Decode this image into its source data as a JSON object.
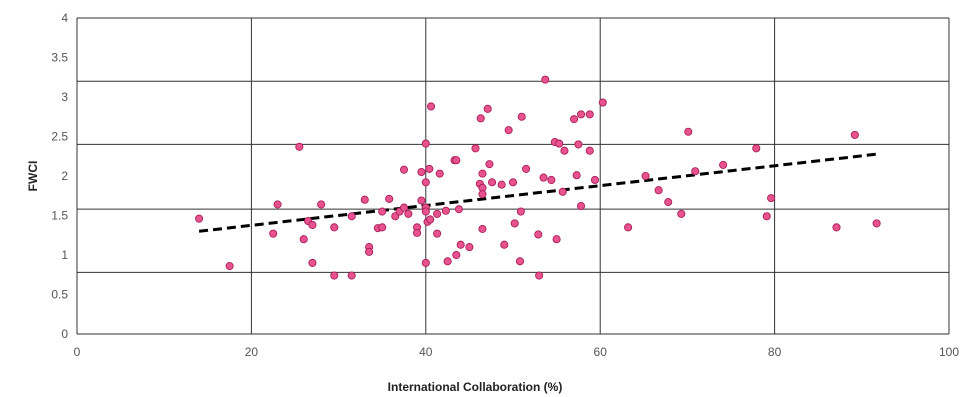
{
  "chart_data": {
    "type": "scatter",
    "title": "",
    "xlabel": "International Collaboration (%)",
    "ylabel": "FWCI",
    "xlim": [
      0,
      100
    ],
    "ylim": [
      0,
      4
    ],
    "x_ticks": [
      "0",
      "20",
      "40",
      "60",
      "80",
      "100"
    ],
    "y_ticks": [
      "0",
      "0.5",
      "1",
      "1.5",
      "2",
      "2.5",
      "3",
      "3.5",
      "4"
    ],
    "grid_x": [
      20,
      40,
      60,
      80
    ],
    "grid_y": [
      0.78,
      1.58,
      2.4,
      3.2
    ],
    "grid": true,
    "legend": "none",
    "point_color": "#e8538f",
    "trendline": {
      "style": "dashed",
      "color": "#000000",
      "from": [
        14,
        1.3
      ],
      "to": [
        92,
        2.28
      ]
    },
    "points": [
      {
        "x": 14,
        "y": 1.46
      },
      {
        "x": 17.5,
        "y": 0.86
      },
      {
        "x": 22.5,
        "y": 1.27
      },
      {
        "x": 23,
        "y": 1.64
      },
      {
        "x": 25.5,
        "y": 2.37
      },
      {
        "x": 26,
        "y": 1.2
      },
      {
        "x": 26.5,
        "y": 1.43
      },
      {
        "x": 27,
        "y": 1.38
      },
      {
        "x": 27,
        "y": 0.9
      },
      {
        "x": 28,
        "y": 1.64
      },
      {
        "x": 29.5,
        "y": 0.74
      },
      {
        "x": 29.5,
        "y": 1.35
      },
      {
        "x": 31.5,
        "y": 1.49
      },
      {
        "x": 31.5,
        "y": 0.74
      },
      {
        "x": 33,
        "y": 1.7
      },
      {
        "x": 33.5,
        "y": 1.1
      },
      {
        "x": 33.5,
        "y": 1.04
      },
      {
        "x": 34.5,
        "y": 1.34
      },
      {
        "x": 35,
        "y": 1.35
      },
      {
        "x": 35,
        "y": 1.55
      },
      {
        "x": 35.8,
        "y": 1.71
      },
      {
        "x": 36.5,
        "y": 1.49
      },
      {
        "x": 37,
        "y": 1.55
      },
      {
        "x": 37.5,
        "y": 1.6
      },
      {
        "x": 37.5,
        "y": 2.08
      },
      {
        "x": 38,
        "y": 1.52
      },
      {
        "x": 39,
        "y": 1.35
      },
      {
        "x": 39,
        "y": 1.28
      },
      {
        "x": 39.5,
        "y": 1.69
      },
      {
        "x": 39.5,
        "y": 2.05
      },
      {
        "x": 40,
        "y": 1.6
      },
      {
        "x": 40,
        "y": 1.55
      },
      {
        "x": 40,
        "y": 2.41
      },
      {
        "x": 40,
        "y": 1.92
      },
      {
        "x": 40,
        "y": 0.9
      },
      {
        "x": 40.2,
        "y": 1.42
      },
      {
        "x": 40.4,
        "y": 2.09
      },
      {
        "x": 40.5,
        "y": 1.45
      },
      {
        "x": 40.6,
        "y": 2.88
      },
      {
        "x": 41.3,
        "y": 1.52
      },
      {
        "x": 41.3,
        "y": 1.27
      },
      {
        "x": 41.6,
        "y": 2.03
      },
      {
        "x": 42.3,
        "y": 1.56
      },
      {
        "x": 42.5,
        "y": 0.92
      },
      {
        "x": 43.3,
        "y": 2.2
      },
      {
        "x": 43.5,
        "y": 2.2
      },
      {
        "x": 43.5,
        "y": 1.0
      },
      {
        "x": 43.8,
        "y": 1.58
      },
      {
        "x": 44,
        "y": 1.13
      },
      {
        "x": 45,
        "y": 1.1
      },
      {
        "x": 45.7,
        "y": 2.35
      },
      {
        "x": 46.2,
        "y": 1.9
      },
      {
        "x": 46.3,
        "y": 2.73
      },
      {
        "x": 46.5,
        "y": 1.85
      },
      {
        "x": 46.5,
        "y": 1.77
      },
      {
        "x": 46.5,
        "y": 1.33
      },
      {
        "x": 46.5,
        "y": 2.03
      },
      {
        "x": 47.1,
        "y": 2.85
      },
      {
        "x": 47.3,
        "y": 2.15
      },
      {
        "x": 47.6,
        "y": 1.92
      },
      {
        "x": 48.7,
        "y": 1.89
      },
      {
        "x": 49,
        "y": 1.13
      },
      {
        "x": 49.5,
        "y": 2.58
      },
      {
        "x": 50,
        "y": 1.92
      },
      {
        "x": 50.2,
        "y": 1.4
      },
      {
        "x": 50.8,
        "y": 0.92
      },
      {
        "x": 50.9,
        "y": 1.55
      },
      {
        "x": 51,
        "y": 2.75
      },
      {
        "x": 51.5,
        "y": 2.09
      },
      {
        "x": 52.9,
        "y": 1.26
      },
      {
        "x": 53,
        "y": 0.74
      },
      {
        "x": 53.5,
        "y": 1.98
      },
      {
        "x": 53.7,
        "y": 3.22
      },
      {
        "x": 54.4,
        "y": 1.95
      },
      {
        "x": 54.8,
        "y": 2.43
      },
      {
        "x": 55,
        "y": 1.2
      },
      {
        "x": 55.3,
        "y": 2.41
      },
      {
        "x": 55.7,
        "y": 1.8
      },
      {
        "x": 55.9,
        "y": 2.32
      },
      {
        "x": 57,
        "y": 2.72
      },
      {
        "x": 57.3,
        "y": 2.01
      },
      {
        "x": 57.5,
        "y": 2.4
      },
      {
        "x": 57.8,
        "y": 1.62
      },
      {
        "x": 57.8,
        "y": 2.78
      },
      {
        "x": 58.8,
        "y": 2.32
      },
      {
        "x": 58.8,
        "y": 2.78
      },
      {
        "x": 59.4,
        "y": 1.95
      },
      {
        "x": 60.3,
        "y": 2.93
      },
      {
        "x": 63.2,
        "y": 1.35
      },
      {
        "x": 65.2,
        "y": 2.0
      },
      {
        "x": 66.7,
        "y": 1.82
      },
      {
        "x": 67.8,
        "y": 1.67
      },
      {
        "x": 69.3,
        "y": 1.52
      },
      {
        "x": 70.1,
        "y": 2.56
      },
      {
        "x": 70.9,
        "y": 2.06
      },
      {
        "x": 74.1,
        "y": 2.14
      },
      {
        "x": 77.9,
        "y": 2.35
      },
      {
        "x": 79.1,
        "y": 1.49
      },
      {
        "x": 79.6,
        "y": 1.72
      },
      {
        "x": 87.1,
        "y": 1.35
      },
      {
        "x": 89.2,
        "y": 2.52
      },
      {
        "x": 91.7,
        "y": 1.4
      }
    ]
  }
}
